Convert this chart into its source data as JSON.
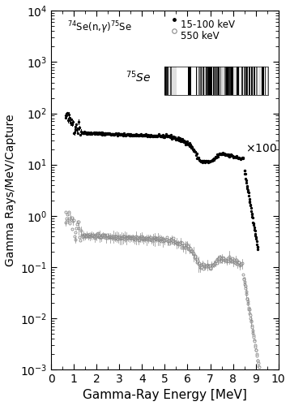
{
  "title": "",
  "xlabel": "Gamma-Ray Energy [MeV]",
  "ylabel": "Gamma Rays/MeV/Capture",
  "xlim": [
    0,
    10
  ],
  "ylim_log": [
    -3,
    4
  ],
  "legend_title": "$^{74}$Se(n,$\\gamma$)$^{75}$Se",
  "label_black": "15-100 keV",
  "label_gray": "550 keV",
  "isotope_label": "$^{75}$Se",
  "x100_text": "$\\times$100",
  "background_color": "#ffffff",
  "barcode_x_start_ax": 0.5,
  "barcode_x_end_ax": 0.955,
  "barcode_y_start_ax": 0.765,
  "barcode_y_end_ax": 0.845
}
